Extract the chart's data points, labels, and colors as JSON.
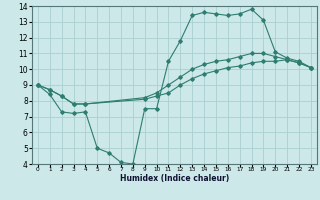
{
  "xlabel": "Humidex (Indice chaleur)",
  "xlim": [
    -0.5,
    23.5
  ],
  "ylim": [
    4,
    14
  ],
  "xticks": [
    0,
    1,
    2,
    3,
    4,
    5,
    6,
    7,
    8,
    9,
    10,
    11,
    12,
    13,
    14,
    15,
    16,
    17,
    18,
    19,
    20,
    21,
    22,
    23
  ],
  "yticks": [
    4,
    5,
    6,
    7,
    8,
    9,
    10,
    11,
    12,
    13,
    14
  ],
  "bg_color": "#cce8e8",
  "line_color": "#2e7d6e",
  "grid_color": "#aacfcf",
  "lines": [
    {
      "x": [
        0,
        1,
        2,
        3,
        4,
        5,
        6,
        7,
        8,
        9,
        10,
        11,
        12,
        13,
        14,
        15,
        16,
        17,
        18,
        19,
        20,
        21,
        22,
        23
      ],
      "y": [
        9,
        8.4,
        7.3,
        7.2,
        7.3,
        5.0,
        4.7,
        4.1,
        4.0,
        7.5,
        7.5,
        10.5,
        11.8,
        13.4,
        13.6,
        13.5,
        13.4,
        13.5,
        13.8,
        13.1,
        11.1,
        10.7,
        10.5,
        10.1
      ]
    },
    {
      "x": [
        0,
        1,
        2,
        3,
        4,
        9,
        10,
        11,
        12,
        13,
        14,
        15,
        16,
        17,
        18,
        19,
        20,
        21,
        22,
        23
      ],
      "y": [
        9,
        8.7,
        8.3,
        7.8,
        7.8,
        8.1,
        8.3,
        8.5,
        9.0,
        9.4,
        9.7,
        9.9,
        10.1,
        10.2,
        10.4,
        10.5,
        10.5,
        10.6,
        10.4,
        10.1
      ]
    },
    {
      "x": [
        0,
        1,
        2,
        3,
        4,
        9,
        10,
        11,
        12,
        13,
        14,
        15,
        16,
        17,
        18,
        19,
        20,
        21,
        22,
        23
      ],
      "y": [
        9,
        8.7,
        8.3,
        7.8,
        7.8,
        8.2,
        8.5,
        9.0,
        9.5,
        10.0,
        10.3,
        10.5,
        10.6,
        10.8,
        11.0,
        11.0,
        10.8,
        10.6,
        10.4,
        10.1
      ]
    }
  ],
  "figsize": [
    3.2,
    2.0
  ],
  "dpi": 100
}
